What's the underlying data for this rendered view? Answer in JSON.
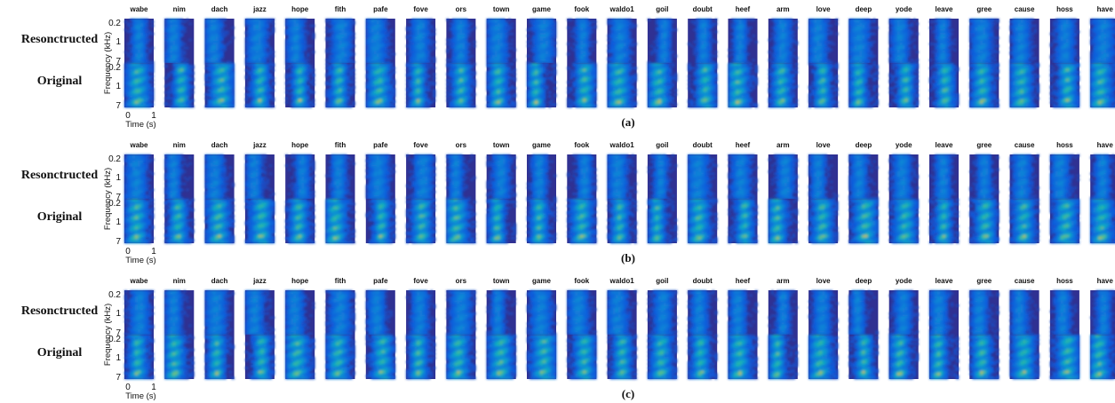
{
  "chart_data": {
    "type": "heatmap",
    "description_note": "",
    "words": [
      "wabe",
      "nim",
      "dach",
      "jazz",
      "hope",
      "fith",
      "pafe",
      "fove",
      "ors",
      "town",
      "game",
      "fook",
      "waldo1",
      "goil",
      "doubt",
      "heef",
      "arm",
      "love",
      "deep",
      "yode",
      "leave",
      "gree",
      "cause",
      "hoss",
      "have"
    ],
    "row_labels": [
      "Resonctructed",
      "Original"
    ],
    "frequency_ticks": [
      "0.2",
      "1",
      "7"
    ],
    "frequency_axis_label": "Frequency (kHz)",
    "time_ticks": [
      "0",
      "1"
    ],
    "time_axis_label": "Time (s)",
    "panels": [
      {
        "label": "(a)"
      },
      {
        "label": "(b)"
      },
      {
        "label": "(c)"
      }
    ],
    "colormap": {
      "low": "#352a87",
      "mid": "#1f8fbf",
      "high": "#f9fb0e"
    }
  }
}
